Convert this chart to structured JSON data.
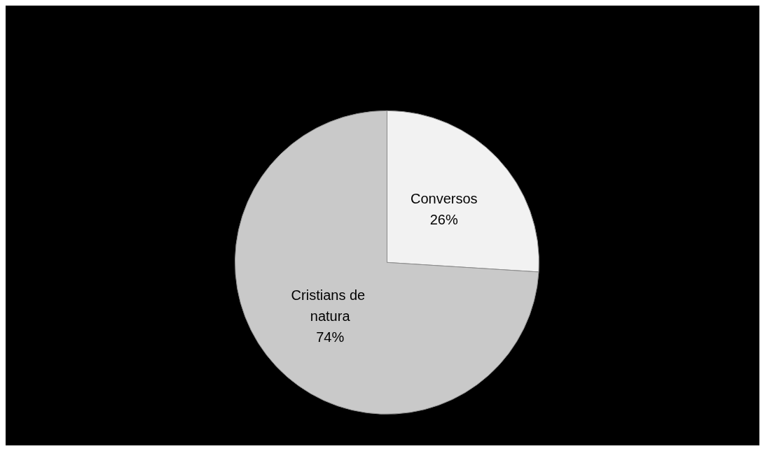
{
  "chart_data": {
    "type": "pie",
    "categories": [
      "Conversos",
      "Cristians de natura"
    ],
    "values": [
      26,
      74
    ],
    "colors": [
      "#f2f2f2",
      "#c9c9c9"
    ],
    "value_labels": [
      "26%",
      "74%"
    ],
    "legend": false
  }
}
